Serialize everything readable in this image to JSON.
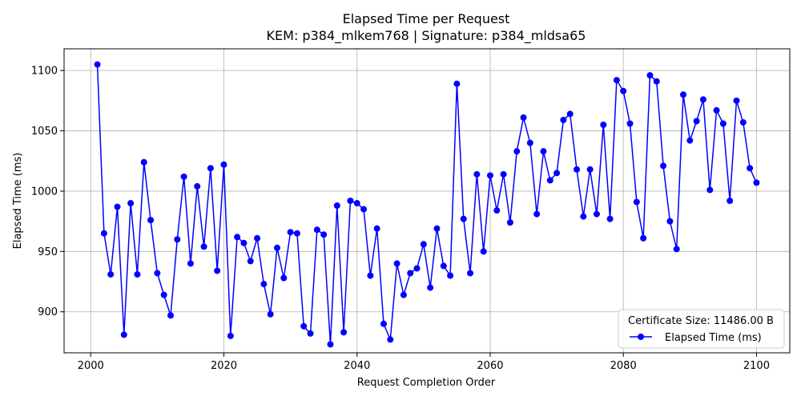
{
  "chart_data": {
    "type": "line",
    "title": "Elapsed Time per Request",
    "subtitle": "KEM: p384_mlkem768 | Signature: p384_mldsa65",
    "xlabel": "Request Completion Order",
    "ylabel": "Elapsed Time (ms)",
    "xlim": [
      1996,
      2105
    ],
    "ylim": [
      866,
      1118
    ],
    "xticks": [
      2000,
      2020,
      2040,
      2060,
      2080,
      2100
    ],
    "yticks": [
      900,
      950,
      1000,
      1050,
      1100
    ],
    "grid": true,
    "legend": {
      "position": "bottom-right",
      "title": "Certificate Size: 11486.00 B",
      "entries": [
        "Elapsed Time (ms)"
      ]
    },
    "series": [
      {
        "name": "Elapsed Time (ms)",
        "color": "#0000ff",
        "x_start": 2001,
        "values": [
          1105,
          965,
          931,
          987,
          881,
          990,
          931,
          1024,
          976,
          932,
          914,
          897,
          960,
          1012,
          940,
          1004,
          954,
          1019,
          934,
          1022,
          880,
          962,
          957,
          942,
          961,
          923,
          898,
          953,
          928,
          966,
          965,
          888,
          882,
          968,
          964,
          873,
          988,
          883,
          992,
          990,
          985,
          930,
          969,
          890,
          877,
          940,
          914,
          932,
          936,
          956,
          920,
          969,
          938,
          930,
          1089,
          977,
          932,
          1014,
          950,
          1013,
          984,
          1014,
          974,
          1033,
          1061,
          1040,
          981,
          1033,
          1009,
          1015,
          1059,
          1064,
          1018,
          979,
          1018,
          981,
          1055,
          977,
          1092,
          1083,
          1056,
          991,
          961,
          1096,
          1091,
          1021,
          975,
          952,
          1080,
          1042,
          1058,
          1076,
          1001,
          1067,
          1056,
          992,
          1075,
          1057,
          1019,
          1007
        ]
      }
    ]
  }
}
